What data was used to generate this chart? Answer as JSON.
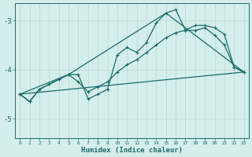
{
  "xlabel": "Humidex (Indice chaleur)",
  "bg_color": "#d4eeec",
  "grid_color": "#b8d8d4",
  "line_color": "#1a6b6b",
  "xlim": [
    -0.5,
    23.5
  ],
  "ylim": [
    -5.4,
    -2.65
  ],
  "yticks": [
    -5,
    -4,
    -3
  ],
  "xticks": [
    0,
    1,
    2,
    3,
    4,
    5,
    6,
    7,
    8,
    9,
    10,
    11,
    12,
    13,
    14,
    15,
    16,
    17,
    18,
    19,
    20,
    21,
    22,
    23
  ],
  "curve1_x": [
    0,
    1,
    2,
    3,
    4,
    5,
    6,
    7,
    8,
    9,
    10,
    11,
    12,
    13,
    14,
    15,
    16,
    17,
    18,
    19,
    20,
    21,
    22,
    23
  ],
  "curve1_y": [
    -4.5,
    -4.65,
    -4.4,
    -4.3,
    -4.2,
    -4.1,
    -4.1,
    -4.6,
    -4.5,
    -4.4,
    -3.7,
    -3.55,
    -3.65,
    -3.45,
    -3.05,
    -2.85,
    -2.78,
    -3.2,
    -3.2,
    -3.15,
    -3.3,
    -3.5,
    -3.95,
    -4.05
  ],
  "curve2_x": [
    0,
    1,
    2,
    3,
    4,
    5,
    6,
    7,
    8,
    9,
    10,
    11,
    12,
    13,
    14,
    15,
    16,
    17,
    18,
    19,
    20,
    21,
    22,
    23
  ],
  "curve2_y": [
    -4.5,
    -4.65,
    -4.4,
    -4.3,
    -4.2,
    -4.1,
    -4.25,
    -4.45,
    -4.35,
    -4.25,
    -4.05,
    -3.9,
    -3.8,
    -3.65,
    -3.5,
    -3.35,
    -3.25,
    -3.2,
    -3.1,
    -3.1,
    -3.15,
    -3.28,
    -3.95,
    -4.05
  ],
  "line3_x": [
    0,
    23
  ],
  "line3_y": [
    -4.5,
    -4.05
  ],
  "line4_x": [
    0,
    5,
    15,
    23
  ],
  "line4_y": [
    -4.5,
    -4.1,
    -2.85,
    -4.05
  ]
}
